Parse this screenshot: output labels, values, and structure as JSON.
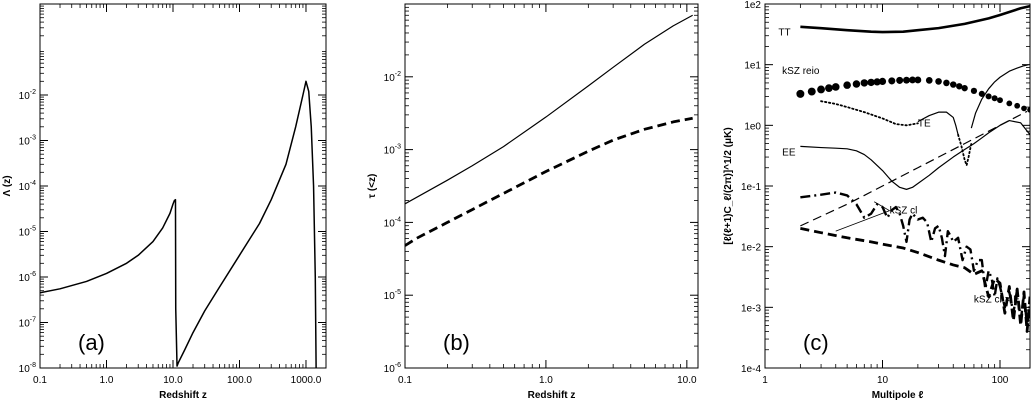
{
  "chart_data": [
    {
      "type": "line",
      "panel_label": "(a)",
      "xlabel": "Redshift z",
      "ylabel": "Λ (z)",
      "xscale": "log",
      "yscale": "log",
      "xlim": [
        0.1,
        2000
      ],
      "ylim": [
        1e-08,
        1
      ],
      "xticks": [
        {
          "v": 0.1,
          "label": "0.1"
        },
        {
          "v": 1,
          "label": "1.0"
        },
        {
          "v": 10,
          "label": "10.0"
        },
        {
          "v": 100,
          "label": "100.0"
        },
        {
          "v": 1000,
          "label": "1000.0"
        }
      ],
      "yticks": [
        {
          "v": 1e-08,
          "m": "10",
          "e": "-8"
        },
        {
          "v": 1e-07,
          "m": "10",
          "e": "-7"
        },
        {
          "v": 1e-06,
          "m": "10",
          "e": "-6"
        },
        {
          "v": 1e-05,
          "m": "10",
          "e": "-5"
        },
        {
          "v": 0.0001,
          "m": "10",
          "e": "-4"
        },
        {
          "v": 0.001,
          "m": "10",
          "e": "-3"
        },
        {
          "v": 0.01,
          "m": "10",
          "e": "-2"
        }
      ],
      "series": [
        {
          "style": "solid",
          "width": 1.5,
          "x": [
            0.1,
            0.2,
            0.5,
            1,
            2,
            3,
            5,
            7,
            9,
            10,
            10.5,
            10.9,
            11,
            11.5,
            12,
            15,
            20,
            30,
            50,
            100,
            200,
            300,
            500,
            700,
            900,
            1000,
            1100,
            1200,
            1300,
            1380,
            1420
          ],
          "y": [
            4.5e-07,
            5.5e-07,
            8e-07,
            1.2e-06,
            2e-06,
            3e-06,
            6e-06,
            1.2e-05,
            2.5e-05,
            4e-05,
            4.8e-05,
            5e-05,
            2e-07,
            1.1e-08,
            1.3e-08,
            2.5e-08,
            6e-08,
            1.8e-07,
            6e-07,
            3e-06,
            1.5e-05,
            5e-05,
            0.0003,
            0.002,
            0.01,
            0.02,
            0.012,
            0.002,
            0.0001,
            1e-06,
            1e-08
          ]
        }
      ]
    },
    {
      "type": "line",
      "panel_label": "(b)",
      "xlabel": "Redshift z",
      "ylabel": "τ (<z)",
      "xscale": "log",
      "yscale": "log",
      "xlim": [
        0.1,
        12
      ],
      "ylim": [
        1e-06,
        0.1
      ],
      "xticks": [
        {
          "v": 0.1,
          "label": "0.1"
        },
        {
          "v": 1,
          "label": "1.0"
        },
        {
          "v": 10,
          "label": "10.0"
        }
      ],
      "yticks": [
        {
          "v": 1e-06,
          "m": "10",
          "e": "-6"
        },
        {
          "v": 1e-05,
          "m": "10",
          "e": "-5"
        },
        {
          "v": 0.0001,
          "m": "10",
          "e": "-4"
        },
        {
          "v": 0.001,
          "m": "10",
          "e": "-3"
        },
        {
          "v": 0.01,
          "m": "10",
          "e": "-2"
        }
      ],
      "series": [
        {
          "style": "solid",
          "width": 1.2,
          "x": [
            0.1,
            0.2,
            0.3,
            0.5,
            1,
            2,
            3,
            5,
            8,
            11
          ],
          "y": [
            0.00018,
            0.00038,
            0.0006,
            0.0011,
            0.0028,
            0.0075,
            0.0135,
            0.028,
            0.05,
            0.07
          ]
        },
        {
          "style": "dashed",
          "width": 2.8,
          "x": [
            0.1,
            0.12,
            0.15,
            0.2,
            0.3,
            0.5,
            1,
            2,
            3,
            5,
            8,
            11
          ],
          "y": [
            4.8e-05,
            6e-05,
            7.5e-05,
            0.0001,
            0.00015,
            0.00025,
            0.0005,
            0.00095,
            0.00135,
            0.0019,
            0.0024,
            0.0027
          ]
        }
      ]
    },
    {
      "type": "line",
      "panel_label": "(c)",
      "xlabel": "Multipole ℓ",
      "ylabel": "[ℓ(ℓ+1)C_ℓ/(2π)]^1/2 (μK)",
      "xscale": "log",
      "yscale": "log",
      "xlim": [
        1,
        180
      ],
      "ylim": [
        0.0001,
        100
      ],
      "xticks": [
        {
          "v": 1,
          "label": "1"
        },
        {
          "v": 10,
          "label": "10"
        },
        {
          "v": 100,
          "label": "100"
        }
      ],
      "yticks": [
        {
          "v": 0.0001,
          "label": "1e-4"
        },
        {
          "v": 0.001,
          "label": "1e-3"
        },
        {
          "v": 0.01,
          "label": "1e-2"
        },
        {
          "v": 0.1,
          "label": "1e-1"
        },
        {
          "v": 1,
          "label": "1e0"
        },
        {
          "v": 10,
          "label": "1e1"
        },
        {
          "v": 100,
          "label": "1e2"
        }
      ],
      "annotations": [
        {
          "text": "TT",
          "x": 1.3,
          "y": 30
        },
        {
          "text": "kSZ reio",
          "x": 1.4,
          "y": 7
        },
        {
          "text": "TE",
          "x": 20,
          "y": 0.95
        },
        {
          "text": "EE",
          "x": 1.4,
          "y": 0.32
        },
        {
          "text": "kSZ cl",
          "x": 11.5,
          "y": 0.035
        },
        {
          "text": "kSZ cl × E",
          "x": 60,
          "y": 0.0012
        }
      ],
      "series": [
        {
          "name": "TT",
          "style": "solid",
          "width": 2.6,
          "x": [
            2,
            3,
            5,
            8,
            10,
            15,
            20,
            30,
            50,
            80,
            100,
            150,
            180
          ],
          "y": [
            42,
            40,
            37,
            35,
            34.5,
            35,
            37,
            40,
            47,
            58,
            66,
            85,
            92
          ]
        },
        {
          "name": "kSZ reio",
          "style": "dots",
          "x": [
            2,
            2.5,
            3,
            3.5,
            4,
            5,
            6,
            7,
            8,
            9,
            10,
            12,
            14,
            16,
            18,
            20,
            25,
            30,
            35,
            40,
            45,
            50,
            60,
            70,
            80,
            90,
            100,
            120,
            140,
            160,
            180
          ],
          "y": [
            3.3,
            3.6,
            3.9,
            4.1,
            4.3,
            4.6,
            4.8,
            5.0,
            5.1,
            5.2,
            5.3,
            5.4,
            5.5,
            5.55,
            5.6,
            5.6,
            5.5,
            5.3,
            5.0,
            4.7,
            4.4,
            4.1,
            3.7,
            3.3,
            3.0,
            2.8,
            2.6,
            2.3,
            2.1,
            1.9,
            1.8
          ]
        },
        {
          "name": "TE dotted",
          "style": "dotted",
          "width": 1.8,
          "x": [
            3,
            4,
            5,
            7,
            10,
            13,
            16,
            20
          ],
          "y": [
            2.5,
            2.25,
            2.0,
            1.65,
            1.3,
            1.05,
            1.0,
            1.08
          ]
        },
        {
          "name": "TE solid",
          "style": "solid",
          "width": 1.2,
          "x": [
            20,
            25,
            30,
            35,
            40,
            42,
            44
          ],
          "y": [
            1.15,
            1.45,
            1.65,
            1.65,
            1.35,
            1.0,
            0.7
          ]
        },
        {
          "name": "TE dip dotted",
          "style": "dotted",
          "width": 1.8,
          "x": [
            44,
            47,
            50,
            52,
            54,
            57
          ],
          "y": [
            0.7,
            0.45,
            0.27,
            0.22,
            0.3,
            0.5
          ]
        },
        {
          "name": "TE high solid",
          "style": "solid",
          "width": 1.2,
          "x": [
            57,
            62,
            70,
            80,
            90,
            100,
            120,
            140,
            160,
            175
          ],
          "y": [
            0.9,
            1.6,
            2.7,
            4.0,
            5.2,
            6.2,
            7.8,
            8.8,
            9.6,
            10
          ]
        },
        {
          "name": "EE",
          "style": "solid",
          "width": 1.2,
          "x": [
            2,
            3,
            4,
            5,
            6,
            7,
            8,
            10,
            12,
            14,
            16,
            18,
            20,
            25,
            30,
            40,
            50,
            60,
            70,
            80,
            100,
            120,
            150,
            180
          ],
          "y": [
            0.45,
            0.43,
            0.42,
            0.41,
            0.38,
            0.33,
            0.27,
            0.18,
            0.12,
            0.095,
            0.088,
            0.095,
            0.11,
            0.15,
            0.2,
            0.3,
            0.4,
            0.5,
            0.62,
            0.75,
            1.0,
            1.2,
            1.1,
            0.7
          ]
        },
        {
          "name": "thin dashed",
          "style": "dashed",
          "width": 1.2,
          "x": [
            2,
            5,
            10,
            20,
            50,
            100,
            150,
            170
          ],
          "y": [
            0.022,
            0.05,
            0.1,
            0.2,
            0.5,
            1.0,
            1.5,
            1.7
          ]
        },
        {
          "name": "kSZ cl",
          "style": "dashdot",
          "width": 2.4,
          "x": [
            2,
            3,
            4,
            5,
            6,
            7,
            8,
            9,
            10,
            11,
            12,
            13,
            14,
            15,
            16,
            17,
            18,
            20,
            22,
            24,
            26,
            28,
            30,
            32,
            34,
            36,
            38,
            40,
            44,
            48,
            52,
            56,
            60,
            65,
            70,
            75,
            80,
            85,
            90,
            95,
            100,
            110,
            120,
            130,
            140,
            150,
            160,
            170,
            180
          ],
          "y": [
            0.065,
            0.072,
            0.078,
            0.07,
            0.05,
            0.03,
            0.035,
            0.05,
            0.045,
            0.03,
            0.04,
            0.045,
            0.035,
            0.022,
            0.012,
            0.028,
            0.035,
            0.028,
            0.03,
            0.025,
            0.012,
            0.02,
            0.022,
            0.014,
            0.007,
            0.018,
            0.015,
            0.012,
            0.014,
            0.006,
            0.01,
            0.009,
            0.004,
            0.006,
            0.006,
            0.002,
            0.004,
            0.003,
            0.0015,
            0.003,
            0.0022,
            0.001,
            0.0018,
            0.0008,
            0.002,
            0.0006,
            0.0016,
            0.0005,
            0.0012
          ]
        },
        {
          "name": "kSZ cl × E",
          "style": "dashed",
          "width": 2.8,
          "x": [
            2,
            3,
            5,
            8,
            10,
            15,
            20,
            30,
            40,
            50,
            60,
            70,
            80,
            90,
            100,
            110,
            120,
            130,
            140,
            150,
            160,
            170,
            180
          ],
          "y": [
            0.02,
            0.017,
            0.014,
            0.012,
            0.011,
            0.0095,
            0.008,
            0.006,
            0.005,
            0.0045,
            0.0035,
            0.004,
            0.0015,
            0.003,
            0.0025,
            0.0008,
            0.0022,
            0.0006,
            0.002,
            0.0005,
            0.0018,
            0.0004,
            0.0015
          ]
        }
      ]
    }
  ]
}
